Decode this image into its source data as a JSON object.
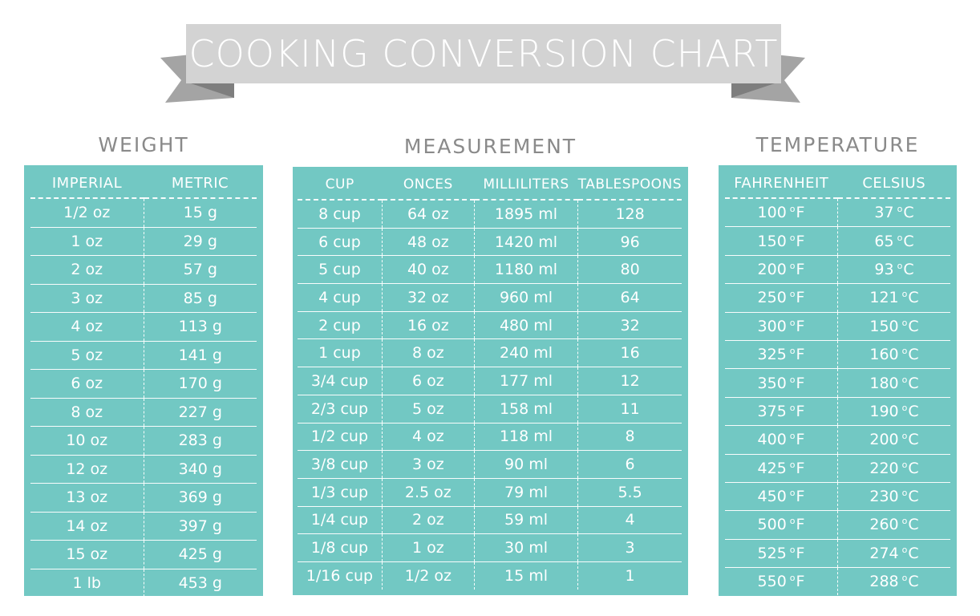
{
  "banner": {
    "title": "COOKING CONVERSION CHART"
  },
  "colors": {
    "panel": "#72c8c3",
    "banner": "#d3d3d3",
    "banner_fold": "#a4a4a4",
    "heading": "#8a8a8a"
  },
  "weight": {
    "title": "WEIGHT",
    "headers": [
      "IMPERIAL",
      "METRIC"
    ],
    "rows": [
      [
        "1/2 oz",
        "15 g"
      ],
      [
        "1 oz",
        "29 g"
      ],
      [
        "2 oz",
        "57 g"
      ],
      [
        "3 oz",
        "85 g"
      ],
      [
        "4 oz",
        "113 g"
      ],
      [
        "5 oz",
        "141 g"
      ],
      [
        "6 oz",
        "170 g"
      ],
      [
        "8 oz",
        "227 g"
      ],
      [
        "10 oz",
        "283 g"
      ],
      [
        "12 oz",
        "340 g"
      ],
      [
        "13 oz",
        "369 g"
      ],
      [
        "14 oz",
        "397 g"
      ],
      [
        "15 oz",
        "425 g"
      ],
      [
        "1 lb",
        "453 g"
      ]
    ]
  },
  "measurement": {
    "title": "MEASUREMENT",
    "headers": [
      "CUP",
      "ONCES",
      "MILLILITERS",
      "TABLESPOONS"
    ],
    "rows": [
      [
        "8 cup",
        "64 oz",
        "1895 ml",
        "128"
      ],
      [
        "6 cup",
        "48 oz",
        "1420 ml",
        "96"
      ],
      [
        "5 cup",
        "40 oz",
        "1180 ml",
        "80"
      ],
      [
        "4 cup",
        "32 oz",
        "960 ml",
        "64"
      ],
      [
        "2 cup",
        "16 oz",
        "480 ml",
        "32"
      ],
      [
        "1 cup",
        "8 oz",
        "240 ml",
        "16"
      ],
      [
        "3/4 cup",
        "6 oz",
        "177 ml",
        "12"
      ],
      [
        "2/3 cup",
        "5 oz",
        "158 ml",
        "11"
      ],
      [
        "1/2 cup",
        "4 oz",
        "118 ml",
        "8"
      ],
      [
        "3/8 cup",
        "3 oz",
        "90 ml",
        "6"
      ],
      [
        "1/3 cup",
        "2.5 oz",
        "79 ml",
        "5.5"
      ],
      [
        "1/4 cup",
        "2 oz",
        "59 ml",
        "4"
      ],
      [
        "1/8 cup",
        "1 oz",
        "30 ml",
        "3"
      ],
      [
        "1/16 cup",
        "1/2 oz",
        "15 ml",
        "1"
      ]
    ]
  },
  "temperature": {
    "title": "TEMPERATURE",
    "headers": [
      "FAHRENHEIT",
      "CELSIUS"
    ],
    "degree": "o",
    "f_unit": "F",
    "c_unit": "C",
    "rows": [
      [
        "100",
        "37"
      ],
      [
        "150",
        "65"
      ],
      [
        "200",
        "93"
      ],
      [
        "250",
        "121"
      ],
      [
        "300",
        "150"
      ],
      [
        "325",
        "160"
      ],
      [
        "350",
        "180"
      ],
      [
        "375",
        "190"
      ],
      [
        "400",
        "200"
      ],
      [
        "425",
        "220"
      ],
      [
        "450",
        "230"
      ],
      [
        "500",
        "260"
      ],
      [
        "525",
        "274"
      ],
      [
        "550",
        "288"
      ]
    ]
  }
}
